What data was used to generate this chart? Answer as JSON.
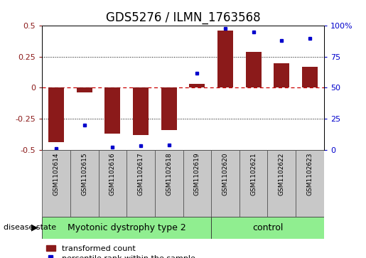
{
  "title": "GDS5276 / ILMN_1763568",
  "samples": [
    "GSM1102614",
    "GSM1102615",
    "GSM1102616",
    "GSM1102617",
    "GSM1102618",
    "GSM1102619",
    "GSM1102620",
    "GSM1102621",
    "GSM1102622",
    "GSM1102623"
  ],
  "transformed_count": [
    -0.44,
    -0.04,
    -0.37,
    -0.38,
    -0.34,
    0.03,
    0.46,
    0.29,
    0.2,
    0.17
  ],
  "percentile_rank": [
    1,
    20,
    2,
    3,
    4,
    62,
    98,
    95,
    88,
    90
  ],
  "disease_groups": [
    {
      "label": "Myotonic dystrophy type 2",
      "start": 0,
      "end": 6,
      "color": "#90EE90"
    },
    {
      "label": "control",
      "start": 6,
      "end": 10,
      "color": "#90EE90"
    }
  ],
  "ylim_left": [
    -0.5,
    0.5
  ],
  "ylim_right": [
    0,
    100
  ],
  "yticks_left": [
    -0.5,
    -0.25,
    0.0,
    0.25,
    0.5
  ],
  "yticks_right": [
    0,
    25,
    50,
    75,
    100
  ],
  "bar_color": "#8B1A1A",
  "dot_color": "#0000CC",
  "hline_color": "#CC0000",
  "dotline_color": "black",
  "bg_color": "white",
  "plot_bg": "white",
  "title_fontsize": 12,
  "tick_fontsize": 8,
  "label_fontsize": 8,
  "legend_fontsize": 8,
  "sample_label_fontsize": 6.5,
  "group_label_fontsize": 9,
  "disease_state_fontsize": 8
}
